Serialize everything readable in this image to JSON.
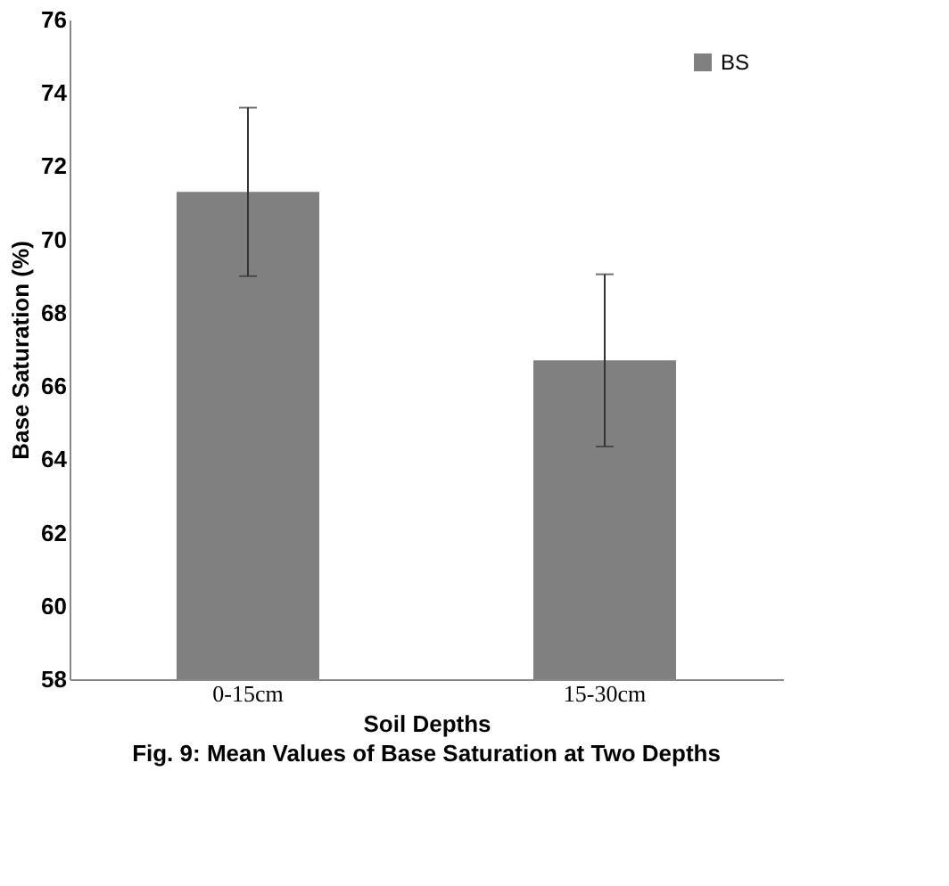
{
  "chart_data": {
    "type": "bar",
    "title": "Fig. 9: Mean Values of  Base Saturation at Two Depths",
    "xlabel": "Soil Depths",
    "ylabel": "Base Saturation (%)",
    "categories": [
      "0-15cm",
      "15-30cm"
    ],
    "series": [
      {
        "name": "BS",
        "color": "#808080",
        "values": [
          71.3,
          66.7
        ],
        "errors": [
          2.3,
          2.35
        ]
      }
    ],
    "ylim": [
      58,
      76
    ],
    "yticks": [
      58,
      60,
      62,
      64,
      66,
      68,
      70,
      72,
      74,
      76
    ],
    "grid": false,
    "legend": "top right"
  }
}
